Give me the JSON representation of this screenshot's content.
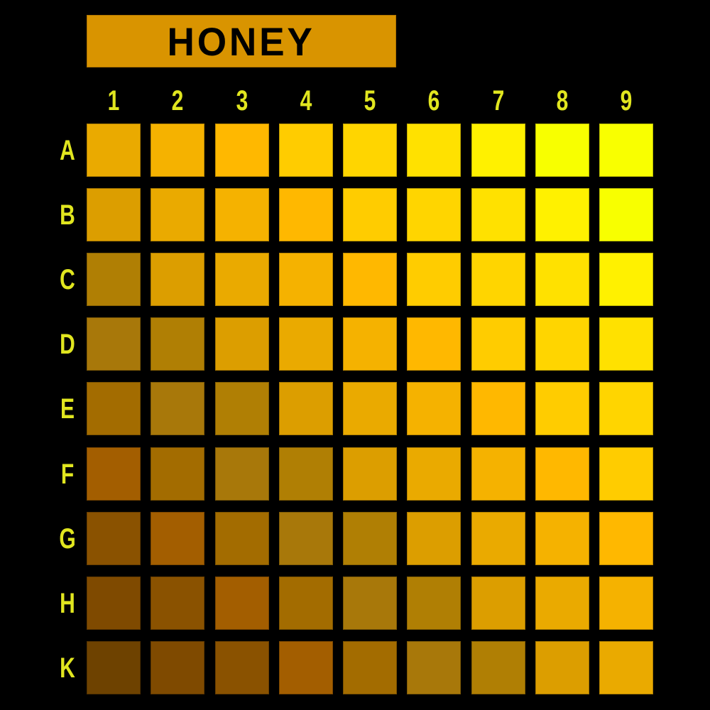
{
  "title": "HONEY",
  "title_color": "#d99400",
  "label_color": "#e1e61f",
  "columns": [
    "1",
    "2",
    "3",
    "4",
    "5",
    "6",
    "7",
    "8",
    "9"
  ],
  "rows": [
    {
      "label": "A",
      "colors": [
        "#eaaa00",
        "#f5b200",
        "#ffb800",
        "#ffcc00",
        "#ffd500",
        "#ffe100",
        "#fff100",
        "#f8ff00",
        "#f9ff00"
      ]
    },
    {
      "label": "B",
      "colors": [
        "#dc9e00",
        "#eaaa00",
        "#f5b200",
        "#ffb800",
        "#ffcc00",
        "#ffd500",
        "#ffe100",
        "#fff100",
        "#f8ff00"
      ]
    },
    {
      "label": "C",
      "colors": [
        "#b07f04",
        "#dc9e00",
        "#eaaa00",
        "#f5b200",
        "#ffb800",
        "#ffcc00",
        "#ffd500",
        "#ffe100",
        "#fff100"
      ]
    },
    {
      "label": "D",
      "colors": [
        "#a8780a",
        "#b07f04",
        "#dc9e00",
        "#eaaa00",
        "#f5b200",
        "#ffb800",
        "#ffcc00",
        "#ffd500",
        "#ffe100"
      ]
    },
    {
      "label": "E",
      "colors": [
        "#a36c00",
        "#a8780a",
        "#b07f04",
        "#dc9e00",
        "#eaaa00",
        "#f5b200",
        "#ffb800",
        "#ffcc00",
        "#ffd500"
      ]
    },
    {
      "label": "F",
      "colors": [
        "#a35e00",
        "#a36c00",
        "#a8780a",
        "#b07f04",
        "#dc9e00",
        "#eaaa00",
        "#f5b200",
        "#ffb800",
        "#ffcc00"
      ]
    },
    {
      "label": "G",
      "colors": [
        "#8a5200",
        "#a35e00",
        "#a36c00",
        "#a8780a",
        "#b07f04",
        "#dc9e00",
        "#eaaa00",
        "#f5b200",
        "#ffb800"
      ]
    },
    {
      "label": "H",
      "colors": [
        "#7f4a00",
        "#8a5200",
        "#a35e00",
        "#a36c00",
        "#a8780a",
        "#b07f04",
        "#dc9e00",
        "#eaaa00",
        "#f5b200"
      ]
    },
    {
      "label": "K",
      "colors": [
        "#6e4200",
        "#7f4a00",
        "#8a5200",
        "#a35e00",
        "#a36c00",
        "#a8780a",
        "#b07f04",
        "#dc9e00",
        "#eaaa00"
      ]
    }
  ]
}
